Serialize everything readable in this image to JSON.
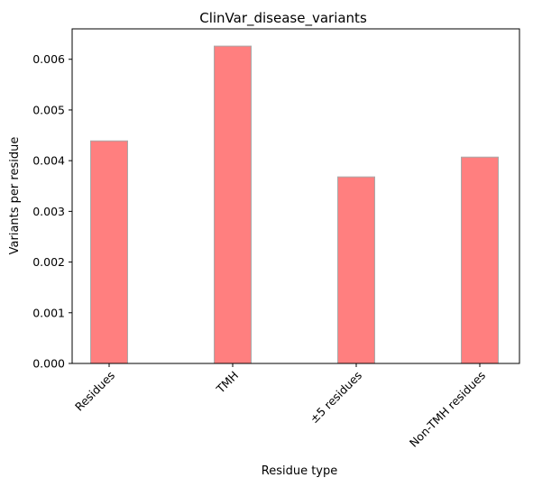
{
  "chart_data": {
    "type": "bar",
    "title": "ClinVar_disease_variants",
    "xlabel": "Residue type",
    "ylabel": "Variants per residue",
    "categories": [
      "Residues",
      "TMH",
      "±5 residues",
      "Non-TMH residues"
    ],
    "values": [
      0.00439,
      0.00626,
      0.00368,
      0.00407
    ],
    "ylim": [
      0,
      0.0066
    ],
    "yticks": [
      "0.000",
      "0.001",
      "0.002",
      "0.003",
      "0.004",
      "0.005",
      "0.006"
    ],
    "grid": false,
    "legend": "none",
    "colors": {
      "bar_fill": "#ff7f7f",
      "bar_edge": "#a9a9a9",
      "axes": "#000000"
    }
  }
}
